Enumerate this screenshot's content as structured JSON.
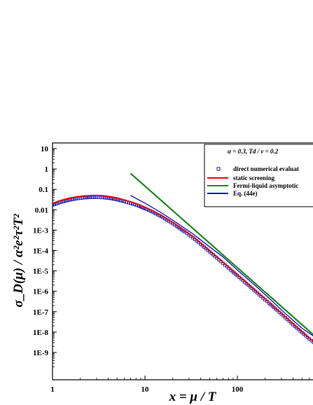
{
  "chart_data": {
    "type": "line",
    "x_scale": "log",
    "y_scale": "log",
    "xlim": [
      1,
      700
    ],
    "ylim": [
      1e-10,
      20
    ],
    "x_ticks": [
      {
        "value": 1,
        "label": "1"
      },
      {
        "value": 10,
        "label": "10"
      },
      {
        "value": 100,
        "label": "100"
      }
    ],
    "y_ticks": [
      {
        "value": 10,
        "label": "10"
      },
      {
        "value": 1,
        "label": "1"
      },
      {
        "value": 0.1,
        "label": "0.1"
      },
      {
        "value": 0.01,
        "label": "0.01"
      },
      {
        "value": 0.001,
        "label": "1E-3"
      },
      {
        "value": 0.0001,
        "label": "1E-4"
      },
      {
        "value": 1e-05,
        "label": "1E-5"
      },
      {
        "value": 1e-06,
        "label": "1E-6"
      },
      {
        "value": 1e-07,
        "label": "1E-7"
      },
      {
        "value": 1e-08,
        "label": "1E-8"
      },
      {
        "value": 1e-09,
        "label": "1E-9"
      }
    ],
    "xlabel": "x = μ / T",
    "ylabel": "σ_D(μ) / α²e²τ²T²",
    "legend_header": "α = 0.3,    Td / v = 0.2",
    "legend_position": "top-right",
    "grid": false,
    "series": [
      {
        "name": "direct numerical evaluation",
        "style": "square-markers",
        "color": "#1a1aa8",
        "x": [
          1.0,
          1.2,
          1.5,
          1.8,
          2.2,
          2.6,
          3.0,
          3.5,
          4.2,
          5.0,
          6.0,
          7.0,
          8.5,
          10,
          12,
          15,
          18,
          22,
          27,
          33,
          40,
          50,
          60,
          70,
          85,
          100,
          120,
          150,
          180,
          220,
          270,
          330,
          400,
          500,
          600,
          700
        ],
        "y": [
          0.0168,
          0.0225,
          0.0295,
          0.0345,
          0.0385,
          0.0405,
          0.0408,
          0.0395,
          0.036,
          0.031,
          0.0252,
          0.0205,
          0.0155,
          0.0114,
          0.0079,
          0.00465,
          0.0028,
          0.00155,
          0.00082,
          0.00042,
          0.000207,
          8.7e-05,
          4.3e-05,
          2.35e-05,
          1.1e-05,
          5.8e-06,
          2.85e-06,
          1.18e-06,
          5.7e-07,
          2.6e-07,
          1.15e-07,
          5.1e-08,
          2.3e-08,
          9.5e-09,
          4.6e-09,
          2.6e-09
        ]
      },
      {
        "name": "static screening",
        "style": "line",
        "color": "#e01010",
        "x": [
          1.0,
          1.2,
          1.5,
          1.8,
          2.2,
          2.6,
          3.0,
          3.5,
          4.2,
          5.0,
          6.0,
          7.0,
          8.5,
          10,
          12,
          15,
          18,
          22,
          27,
          33,
          40,
          50,
          60,
          70,
          85,
          100,
          120,
          150,
          180,
          220,
          270,
          330,
          400,
          500,
          600,
          700
        ],
        "y": [
          0.0205,
          0.0275,
          0.0365,
          0.0425,
          0.0475,
          0.05,
          0.0502,
          0.0485,
          0.044,
          0.0375,
          0.0302,
          0.0245,
          0.0183,
          0.0133,
          0.0091,
          0.00535,
          0.0032,
          0.00177,
          0.00094,
          0.00048,
          0.000235,
          9.9e-05,
          4.9e-05,
          2.65e-05,
          1.25e-05,
          6.5e-06,
          3.2e-06,
          1.32e-06,
          6.4e-07,
          2.9e-07,
          1.28e-07,
          5.7e-08,
          2.55e-08,
          1.05e-08,
          5.1e-09,
          2.85e-09
        ]
      },
      {
        "name": "Fermi-liquid asymptotics",
        "style": "line",
        "color": "#1a8a1a",
        "x": [
          7,
          700
        ],
        "y": [
          0.6,
          6e-09
        ]
      },
      {
        "name": "Eq. (44e)",
        "style": "line",
        "color": "#1010c8",
        "x": [
          7,
          10,
          15,
          22,
          33,
          50,
          70,
          100,
          150,
          220,
          330,
          500,
          700
        ],
        "y": [
          0.05,
          0.021,
          0.0072,
          0.0023,
          0.00065,
          0.000152,
          4.8e-05,
          1.1e-05,
          2.25e-06,
          4.6e-07,
          8.2e-08,
          1.55e-08,
          5.4e-09
        ]
      }
    ],
    "legend_entries": [
      {
        "label": "direct numerical evaluat",
        "style": "square-markers",
        "color": "#1a1aa8"
      },
      {
        "label": "static screening",
        "style": "line",
        "color": "#e01010"
      },
      {
        "label": "Fermi-liquid asymptotic",
        "style": "line",
        "color": "#1a8a1a"
      },
      {
        "label": "Eq. (44e)",
        "style": "line",
        "color": "#1010c8"
      }
    ]
  }
}
